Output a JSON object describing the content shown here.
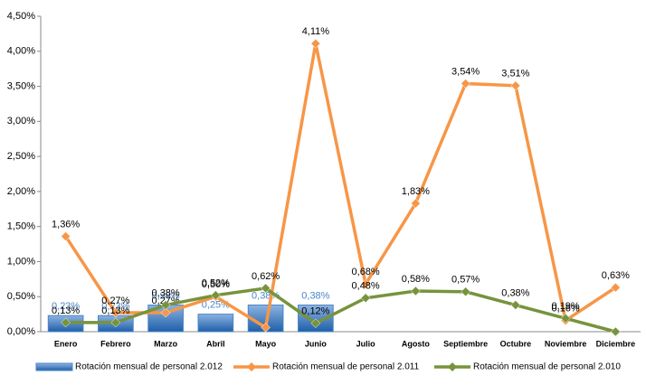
{
  "chart_data": {
    "type": "bar-line",
    "categories": [
      "Enero",
      "Febrero",
      "Marzo",
      "Abril",
      "Mayo",
      "Junio",
      "Julio",
      "Agosto",
      "Septiembre",
      "Octubre",
      "Noviembre",
      "Diciembre"
    ],
    "ylim": [
      0,
      4.5
    ],
    "yticks": [
      {
        "value": 0,
        "label": "0,00%"
      },
      {
        "value": 0.5,
        "label": "0,50%"
      },
      {
        "value": 1,
        "label": "1,00%"
      },
      {
        "value": 1.5,
        "label": "1,50%"
      },
      {
        "value": 2,
        "label": "2,00%"
      },
      {
        "value": 2.5,
        "label": "2,50%"
      },
      {
        "value": 3,
        "label": "3,00%"
      },
      {
        "value": 3.5,
        "label": "3,50%"
      },
      {
        "value": 4,
        "label": "4,00%"
      },
      {
        "value": 4.5,
        "label": "4,50%"
      }
    ],
    "series": [
      {
        "name": "Rotación mensual  de personal 2.012",
        "type": "bar",
        "color": "#4a86c8",
        "values": [
          0.23,
          0.23,
          0.38,
          0.25,
          0.38,
          0.38,
          null,
          null,
          null,
          null,
          null,
          null
        ],
        "value_labels": [
          "0,23%",
          "0,23%",
          "0,38%",
          "0,25%",
          "0,38%",
          "0,38%",
          null,
          null,
          null,
          null,
          null,
          null
        ]
      },
      {
        "name": "Rotación mensual  de personal 2.011",
        "type": "line",
        "color": "#f79646",
        "values": [
          1.36,
          0.27,
          0.27,
          0.5,
          0.06,
          4.11,
          0.68,
          1.83,
          3.54,
          3.51,
          0.16,
          0.63
        ],
        "value_labels": [
          "1,36%",
          "0,27%",
          "0,27%",
          "0,50%",
          null,
          "4,11%",
          "0,68%",
          "1,83%",
          "3,54%",
          "3,51%",
          "0,16%",
          "0,63%"
        ]
      },
      {
        "name": "Rotación mensual  de personal 2.010",
        "type": "line",
        "color": "#77933c",
        "values": [
          0.13,
          0.13,
          0.38,
          0.52,
          0.62,
          0.12,
          0.48,
          0.58,
          0.57,
          0.38,
          0.19,
          0
        ],
        "value_labels": [
          "0,13%",
          "0,13%",
          "0,38%",
          "0,52%",
          "0,62%",
          "0,12%",
          "0,48%",
          "0,58%",
          "0,57%",
          "0,38%",
          "0,19%",
          null
        ]
      }
    ]
  }
}
